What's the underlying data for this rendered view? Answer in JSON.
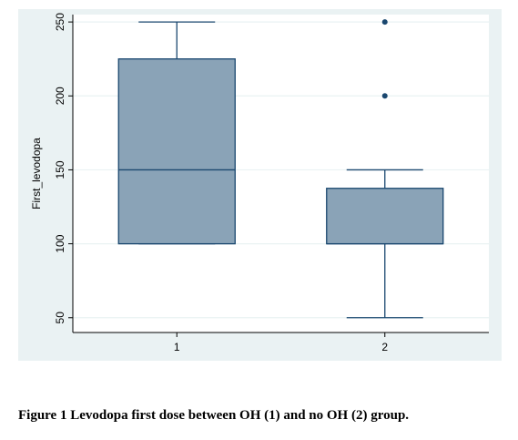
{
  "colors": {
    "panel_background": "#eaf2f3",
    "plot_background": "#ffffff",
    "box_fill": "#8aa3b7",
    "box_stroke": "#1a476f",
    "grid": "#eaf2f3",
    "axis": "#000000",
    "text": "#000000"
  },
  "chart_data": {
    "type": "box",
    "ylabel": "First_levodopa",
    "ylim": [
      40,
      255
    ],
    "yticks": [
      50,
      100,
      150,
      200,
      250
    ],
    "ytick_orientation": "vertical",
    "grid": true,
    "categories": [
      "1",
      "2"
    ],
    "boxes": [
      {
        "category": "1",
        "whisker_low": 100,
        "q1": 100,
        "median": 150,
        "q3": 225,
        "whisker_high": 250,
        "outliers": []
      },
      {
        "category": "2",
        "whisker_low": 50,
        "q1": 100,
        "median": 100,
        "q3": 137.5,
        "whisker_high": 150,
        "outliers": [
          200,
          250
        ]
      }
    ]
  },
  "caption": "Figure 1 Levodopa first dose between OH (1) and no OH (2) group."
}
